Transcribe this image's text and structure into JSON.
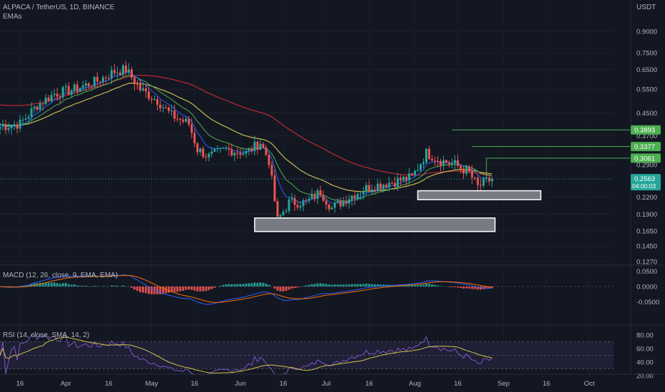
{
  "header": {
    "symbol_line": "ALPACA / TetherUS, 1D, BINANCE",
    "indicator": "EMAs",
    "currency": "USDT"
  },
  "price_axis": {
    "ticks": [
      "0.9000",
      "0.7500",
      "0.6500",
      "0.5500",
      "0.4500",
      "0.3700",
      "0.2900",
      "0.2200",
      "0.1900",
      "0.1650",
      "0.1450",
      "0.1270"
    ]
  },
  "price_tags": [
    {
      "label": "0.3893",
      "color": "#4caf50"
    },
    {
      "label": "0.3377",
      "color": "#4caf50"
    },
    {
      "label": "0.3061",
      "color": "#4caf50"
    }
  ],
  "last_price": {
    "label": "0.2563",
    "countdown": "04:00:03",
    "color": "#26a69a"
  },
  "zones": [
    {
      "name": "upper-demand-zone",
      "from_date": "Aug 2",
      "to_date": "Sep 14",
      "top": 0.232,
      "bottom": 0.215
    },
    {
      "name": "lower-demand-zone",
      "from_date": "Jun 6",
      "to_date": "Aug 29",
      "top": 0.184,
      "bottom": 0.164
    }
  ],
  "resistance_lines": [
    {
      "level": 0.3893,
      "from_date": "Aug 14"
    },
    {
      "level": 0.3377,
      "from_date": "Aug 21"
    },
    {
      "level": 0.3061,
      "from_date": "Aug 26"
    }
  ],
  "macd": {
    "title": "MACD (12, 26, close, 9, EMA, EMA)",
    "ticks": [
      "0.0500",
      "0.0000",
      "-0.0500"
    ]
  },
  "rsi": {
    "title": "RSI (14, close, SMA, 14, 2)",
    "ticks": [
      "80.00",
      "60.00",
      "40.00",
      "20.00"
    ]
  },
  "time_axis": {
    "labels": [
      "16",
      "Apr",
      "16",
      "May",
      "16",
      "Jun",
      "16",
      "Jul",
      "16",
      "Aug",
      "16",
      "Sep",
      "16",
      "Oct"
    ]
  },
  "colors": {
    "background": "#131722",
    "up": "#26a69a",
    "down": "#ef5350",
    "ema_short": "#2962ff",
    "ema_mid": "#4caf50",
    "ema_50": "#c8b850",
    "ema_200": "#b22833",
    "macd_line": "#2962ff",
    "signal_line": "#ff6d00",
    "rsi_line": "#7e57c2",
    "rsi_ma": "#d4c44a"
  },
  "chart_data": {
    "type": "candlestick",
    "title": "ALPACA / TetherUS, 1D, BINANCE",
    "y_scale": "log",
    "ylim": [
      0.12,
      1.0
    ],
    "x_range": [
      "Mar 9",
      "Oct 5"
    ],
    "price_keypoints": [
      [
        "Mar 9",
        0.4
      ],
      [
        "Mar 16",
        0.41
      ],
      [
        "Mar 22",
        0.48
      ],
      [
        "Mar 28",
        0.53
      ],
      [
        "Apr 4",
        0.55
      ],
      [
        "Apr 12",
        0.59
      ],
      [
        "Apr 18",
        0.64
      ],
      [
        "Apr 22",
        0.65
      ],
      [
        "Apr 27",
        0.55
      ],
      [
        "May 3",
        0.5
      ],
      [
        "May 8",
        0.44
      ],
      [
        "May 14",
        0.41
      ],
      [
        "May 17",
        0.33
      ],
      [
        "May 21",
        0.31
      ],
      [
        "May 27",
        0.33
      ],
      [
        "Jun 3",
        0.32
      ],
      [
        "Jun 8",
        0.35
      ],
      [
        "Jun 11",
        0.3
      ],
      [
        "Jun 14",
        0.18
      ],
      [
        "Jun 18",
        0.21
      ],
      [
        "Jun 24",
        0.21
      ],
      [
        "Jun 29",
        0.23
      ],
      [
        "Jul 3",
        0.2
      ],
      [
        "Jul 9",
        0.22
      ],
      [
        "Jul 16",
        0.24
      ],
      [
        "Jul 24",
        0.25
      ],
      [
        "Jul 31",
        0.26
      ],
      [
        "Aug 5",
        0.32
      ],
      [
        "Aug 10",
        0.3
      ],
      [
        "Aug 15",
        0.29
      ],
      [
        "Aug 20",
        0.27
      ],
      [
        "Aug 23",
        0.24
      ],
      [
        "Aug 26",
        0.25
      ],
      [
        "Aug 28",
        0.2563
      ]
    ]
  }
}
